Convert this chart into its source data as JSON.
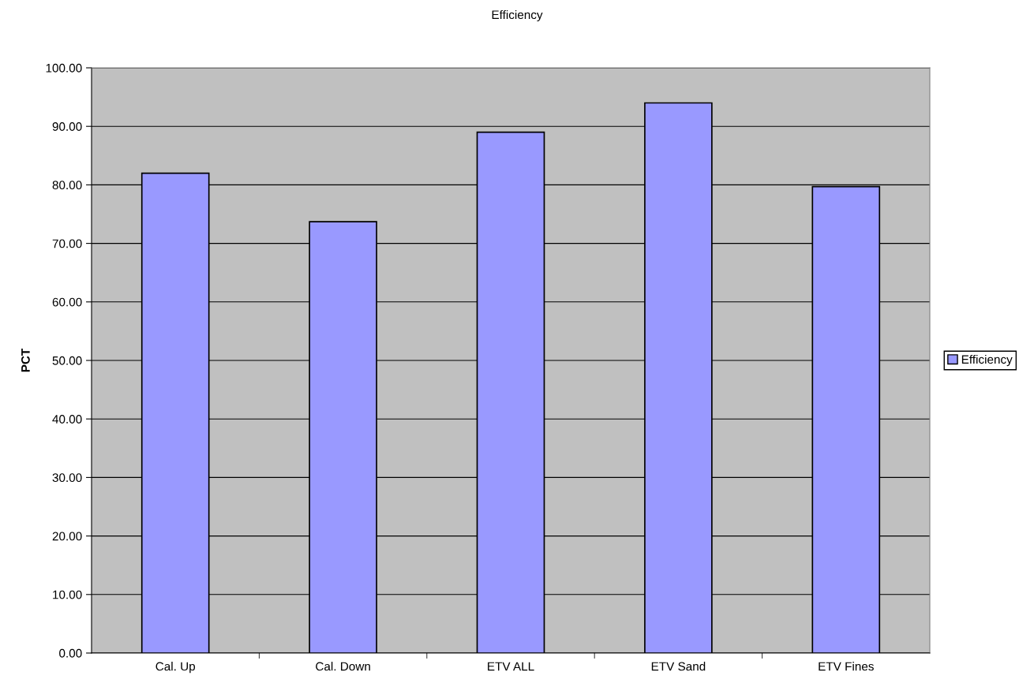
{
  "chart_data": {
    "type": "bar",
    "title": "Efficiency",
    "ylabel": "PCT",
    "categories": [
      "Cal. Up",
      "Cal. Down",
      "ETV ALL",
      "ETV Sand",
      "ETV Fines"
    ],
    "series": [
      {
        "name": "Efficiency",
        "color": "#9999ff",
        "values": [
          82.0,
          73.7,
          89.0,
          94.0,
          79.7
        ]
      }
    ],
    "ylim": [
      0,
      100
    ],
    "yticks": [
      {
        "value": 0,
        "label": "0.00"
      },
      {
        "value": 10,
        "label": "10.00"
      },
      {
        "value": 20,
        "label": "20.00"
      },
      {
        "value": 30,
        "label": "30.00"
      },
      {
        "value": 40,
        "label": "40.00"
      },
      {
        "value": 50,
        "label": "50.00"
      },
      {
        "value": 60,
        "label": "60.00"
      },
      {
        "value": 70,
        "label": "70.00"
      },
      {
        "value": 80,
        "label": "80.00"
      },
      {
        "value": 90,
        "label": "90.00"
      },
      {
        "value": 100,
        "label": "100.00"
      }
    ],
    "grid": "y",
    "legend": "right"
  }
}
